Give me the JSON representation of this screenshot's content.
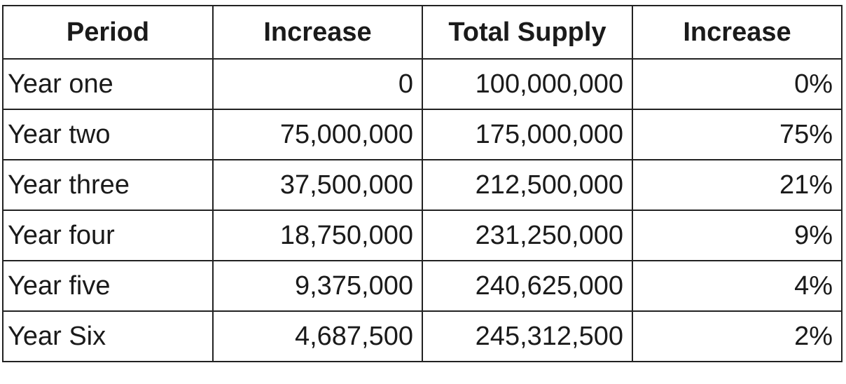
{
  "table": {
    "headers": [
      "Period",
      "Increase",
      "Total Supply",
      "Increase"
    ],
    "rows": [
      {
        "period": "Year one",
        "increase": "0",
        "total_supply": "100,000,000",
        "increase_pct": "0%"
      },
      {
        "period": "Year two",
        "increase": "75,000,000",
        "total_supply": "175,000,000",
        "increase_pct": "75%"
      },
      {
        "period": "Year three",
        "increase": "37,500,000",
        "total_supply": "212,500,000",
        "increase_pct": "21%"
      },
      {
        "period": "Year four",
        "increase": "18,750,000",
        "total_supply": "231,250,000",
        "increase_pct": "9%"
      },
      {
        "period": "Year five",
        "increase": "9,375,000",
        "total_supply": "240,625,000",
        "increase_pct": "4%"
      },
      {
        "period": "Year Six",
        "increase": "4,687,500",
        "total_supply": "245,312,500",
        "increase_pct": "2%"
      }
    ]
  }
}
